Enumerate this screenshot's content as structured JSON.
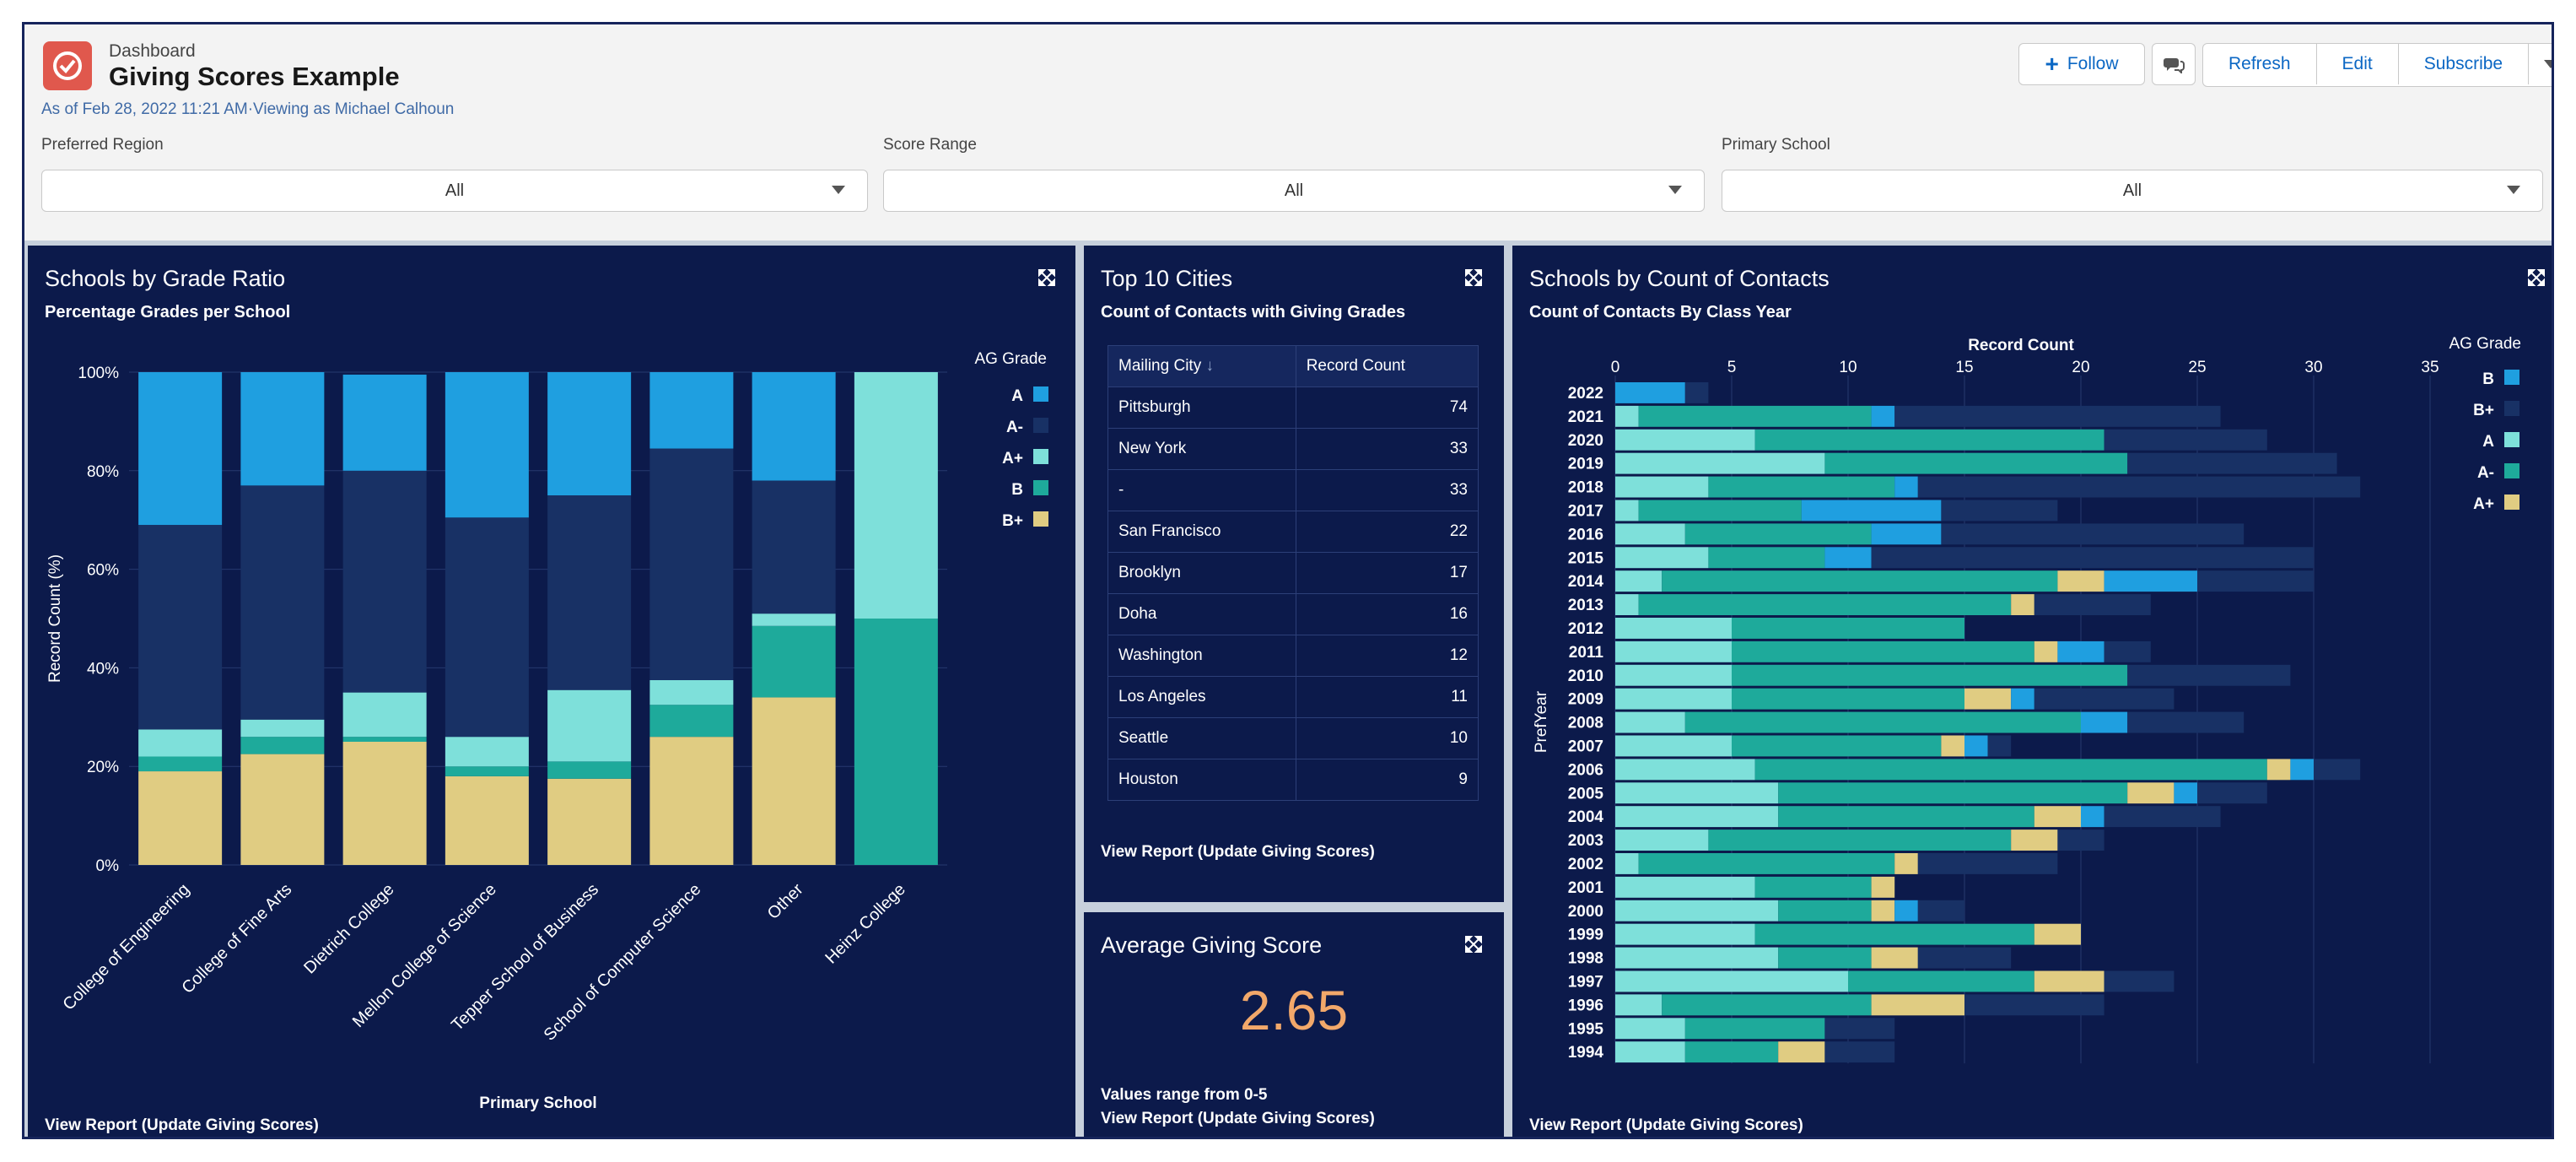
{
  "header": {
    "eyebrow": "Dashboard",
    "title": "Giving Scores Example",
    "subtitle": "As of Feb 28, 2022 11:21 AM·Viewing as Michael Calhoun",
    "buttons": {
      "follow": "Follow",
      "refresh": "Refresh",
      "edit": "Edit",
      "subscribe": "Subscribe"
    }
  },
  "filters": [
    {
      "label": "Preferred Region",
      "value": "All"
    },
    {
      "label": "Score Range",
      "value": "All"
    },
    {
      "label": "Primary School",
      "value": "All"
    }
  ],
  "colors": {
    "A": "#1f9fe0",
    "A-": "#183165",
    "A+": "#7ee0da",
    "B": "#1eaa9b",
    "B+": "#e0cc82"
  },
  "panels": {
    "grade_ratio": {
      "title": "Schools by Grade Ratio",
      "subtitle": "Percentage Grades per School",
      "footer": "View Report (Update Giving Scores)"
    },
    "top_cities": {
      "title": "Top 10 Cities",
      "subtitle": "Count of Contacts with Giving Grades",
      "footer": "View Report (Update Giving Scores)",
      "columns": [
        "Mailing City",
        "Record Count"
      ],
      "rows": [
        {
          "city": "Pittsburgh",
          "count": "74"
        },
        {
          "city": "New York",
          "count": "33"
        },
        {
          "city": "-",
          "count": "33"
        },
        {
          "city": "San Francisco",
          "count": "22"
        },
        {
          "city": "Brooklyn",
          "count": "17"
        },
        {
          "city": "Doha",
          "count": "16"
        },
        {
          "city": "Washington",
          "count": "12"
        },
        {
          "city": "Los Angeles",
          "count": "11"
        },
        {
          "city": "Seattle",
          "count": "10"
        },
        {
          "city": "Houston",
          "count": "9"
        }
      ]
    },
    "avg_score": {
      "title": "Average Giving Score",
      "value": "2.65",
      "note": "Values range from 0-5",
      "footer": "View Report (Update Giving Scores)"
    },
    "contacts": {
      "title": "Schools by Count of Contacts",
      "subtitle": "Count of Contacts By Class Year",
      "footer": "View Report (Update Giving Scores)"
    }
  },
  "chart_data": [
    {
      "type": "bar",
      "stacked": true,
      "orientation": "vertical",
      "xlabel": "Primary School",
      "ylabel": "Record Count (%)",
      "ylim": [
        0,
        100
      ],
      "yticks": [
        "0%",
        "20%",
        "40%",
        "60%",
        "80%",
        "100%"
      ],
      "legend_title": "AG Grade",
      "legend_position": "right",
      "categories": [
        "College of Engineering",
        "College of Fine Arts",
        "Dietrich College",
        "Mellon College of Science",
        "Tepper School of Business",
        "School of Computer Science",
        "Other",
        "Heinz College"
      ],
      "series": [
        {
          "name": "B+",
          "color": "#e0cc82",
          "values": [
            19,
            22.5,
            25,
            18,
            17.5,
            26,
            34,
            0
          ]
        },
        {
          "name": "B",
          "color": "#1eaa9b",
          "values": [
            3,
            3.5,
            1,
            2,
            3.5,
            6.5,
            14.5,
            50
          ]
        },
        {
          "name": "A+",
          "color": "#7ee0da",
          "values": [
            5.5,
            3.5,
            9,
            6,
            14.5,
            5,
            2.5,
            50
          ]
        },
        {
          "name": "A-",
          "color": "#183165",
          "values": [
            41.5,
            47.5,
            45,
            44.5,
            39.5,
            47,
            27,
            0
          ]
        },
        {
          "name": "A",
          "color": "#1f9fe0",
          "values": [
            31,
            23,
            19.5,
            29.5,
            25,
            15.5,
            22,
            0
          ]
        }
      ]
    },
    {
      "type": "bar",
      "stacked": true,
      "orientation": "horizontal",
      "xlabel": "Record Count",
      "ylabel": "PrefYear",
      "xlim": [
        0,
        35
      ],
      "xticks": [
        "0",
        "5",
        "10",
        "15",
        "20",
        "25",
        "30",
        "35"
      ],
      "legend_title": "AG Grade",
      "legend_position": "right",
      "categories": [
        "2022",
        "2021",
        "2020",
        "2019",
        "2018",
        "2017",
        "2016",
        "2015",
        "2014",
        "2013",
        "2012",
        "2011",
        "2010",
        "2009",
        "2008",
        "2007",
        "2006",
        "2005",
        "2004",
        "2003",
        "2002",
        "2001",
        "2000",
        "1999",
        "1998",
        "1997",
        "1996",
        "1995",
        "1994"
      ],
      "series": [
        {
          "name": "A",
          "color": "#7ee0da",
          "values": [
            0,
            1,
            6,
            9,
            4,
            1,
            3,
            4,
            2,
            1,
            5,
            5,
            5,
            5,
            3,
            5,
            6,
            7,
            7,
            4,
            1,
            6,
            7,
            6,
            7,
            10,
            2,
            3,
            3
          ]
        },
        {
          "name": "A-",
          "color": "#1eaa9b",
          "values": [
            0,
            10,
            15,
            13,
            8,
            7,
            8,
            5,
            17,
            16,
            10,
            13,
            17,
            10,
            17,
            9,
            22,
            15,
            11,
            13,
            11,
            5,
            4,
            12,
            4,
            8,
            9,
            6,
            4
          ]
        },
        {
          "name": "A+",
          "color": "#e0cc82",
          "values": [
            0,
            0,
            0,
            0,
            0,
            0,
            0,
            0,
            2,
            1,
            0,
            1,
            0,
            2,
            0,
            1,
            1,
            2,
            2,
            2,
            1,
            1,
            1,
            2,
            2,
            3,
            4,
            0,
            2
          ]
        },
        {
          "name": "B",
          "color": "#1f9fe0",
          "values": [
            3,
            1,
            0,
            0,
            1,
            6,
            3,
            2,
            4,
            0,
            0,
            2,
            0,
            1,
            2,
            1,
            1,
            1,
            1,
            0,
            0,
            0,
            1,
            0,
            0,
            0,
            0,
            0,
            0
          ]
        },
        {
          "name": "B+",
          "color": "#183165",
          "values": [
            1,
            14,
            7,
            9,
            19,
            5,
            13,
            19,
            5,
            5,
            0,
            2,
            7,
            6,
            5,
            1,
            2,
            3,
            5,
            2,
            6,
            0,
            2,
            0,
            4,
            3,
            6,
            3,
            3
          ]
        }
      ]
    }
  ]
}
